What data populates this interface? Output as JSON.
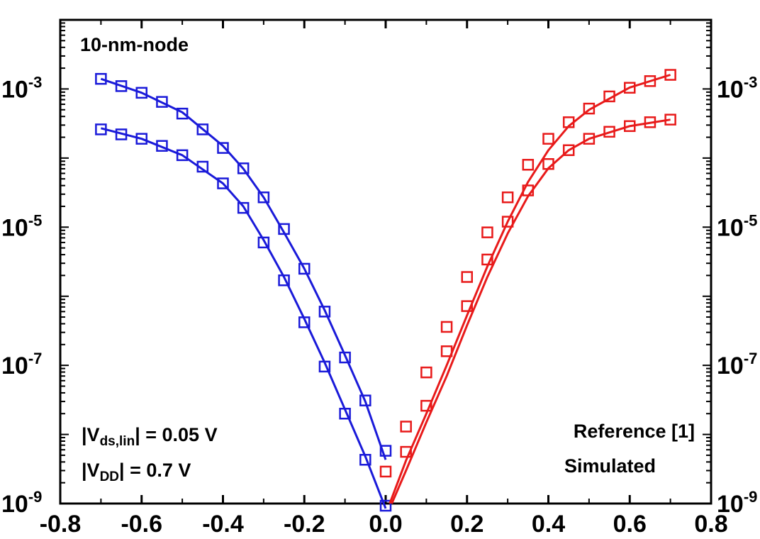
{
  "chart_data": {
    "type": "scatter",
    "title": "",
    "xlabel": "",
    "ylabel": "",
    "xlim": [
      -0.8,
      0.8
    ],
    "ylim_log10": [
      -9,
      -2
    ],
    "y_scale": "log",
    "grid": false,
    "x_ticks": [
      "-0.8",
      "-0.6",
      "-0.4",
      "-0.2",
      "0.0",
      "0.2",
      "0.4",
      "0.6",
      "0.8"
    ],
    "y_ticks": [
      {
        "base": "10",
        "exp": "-3"
      },
      {
        "base": "10",
        "exp": "-5"
      },
      {
        "base": "10",
        "exp": "-7"
      },
      {
        "base": "10",
        "exp": "-9"
      }
    ],
    "y_ticks_right": [
      {
        "base": "10",
        "exp": "-3"
      },
      {
        "base": "10",
        "exp": "-5"
      },
      {
        "base": "10",
        "exp": "-7"
      },
      {
        "base": "10",
        "exp": "-9"
      }
    ],
    "annotations": {
      "node": "10-nm-node",
      "vds_lin": {
        "prefix": "|V",
        "sub": "ds,lin",
        "suffix": "| = 0.05 V"
      },
      "vdd": {
        "prefix": "|V",
        "sub": "DD",
        "suffix": "| = 0.7 V"
      }
    },
    "legend": {
      "position": "bottom-right",
      "entries": [
        "Reference [1]",
        "Simulated"
      ]
    },
    "colors": {
      "pmos": "#1a1ad9",
      "nmos": "#e81a1a"
    },
    "series": [
      {
        "color_key": "pmos",
        "marker": "square",
        "x": [
          -0.7,
          -0.65,
          -0.6,
          -0.55,
          -0.5,
          -0.45,
          -0.4,
          -0.35,
          -0.3,
          -0.25,
          -0.2,
          -0.15,
          -0.1,
          -0.05,
          0.0
        ],
        "y": [
          0.0014,
          0.0011,
          0.00088,
          0.00065,
          0.00044,
          0.00026,
          0.00014,
          7.1e-05,
          2.7e-05,
          9.4e-06,
          2.5e-06,
          6e-07,
          1.3e-07,
          3.1e-08,
          5.8e-09
        ]
      },
      {
        "color_key": "pmos",
        "marker": "square",
        "x": [
          -0.7,
          -0.65,
          -0.6,
          -0.55,
          -0.5,
          -0.45,
          -0.4,
          -0.35,
          -0.3,
          -0.25,
          -0.2,
          -0.15,
          -0.1,
          -0.05,
          0.0
        ],
        "y": [
          0.00026,
          0.00022,
          0.00019,
          0.00015,
          0.00011,
          7.5e-05,
          4.3e-05,
          1.9e-05,
          6e-06,
          1.7e-06,
          4.2e-07,
          9.6e-08,
          2e-08,
          4.3e-09,
          9.3e-10
        ]
      },
      {
        "color_key": "pmos",
        "marker": "line",
        "x": [
          -0.7,
          -0.6,
          -0.5,
          -0.4,
          -0.35,
          -0.3,
          -0.25,
          -0.2,
          -0.15,
          -0.1,
          -0.05,
          0.0
        ],
        "y": [
          0.0014,
          0.00088,
          0.00046,
          0.00015,
          7e-05,
          2.7e-05,
          8.4e-06,
          2.5e-06,
          6.3e-07,
          1.4e-07,
          3e-08,
          4.3e-09
        ]
      },
      {
        "color_key": "pmos",
        "marker": "line",
        "x": [
          -0.7,
          -0.6,
          -0.5,
          -0.4,
          -0.35,
          -0.3,
          -0.25,
          -0.2,
          -0.15,
          -0.1,
          -0.05,
          0.0
        ],
        "y": [
          0.00027,
          0.00019,
          0.00011,
          4.3e-05,
          2e-05,
          6.5e-06,
          1.9e-06,
          4.7e-07,
          1.1e-07,
          2.3e-08,
          4.8e-09,
          8.5e-10
        ]
      },
      {
        "color_key": "nmos",
        "marker": "square",
        "x": [
          0.0,
          0.05,
          0.1,
          0.15,
          0.2,
          0.25,
          0.3,
          0.35,
          0.4,
          0.45,
          0.5,
          0.55,
          0.6,
          0.65,
          0.7
        ],
        "y": [
          2.9e-09,
          1.3e-08,
          7.9e-08,
          3.6e-07,
          1.9e-06,
          8.4e-06,
          2.7e-05,
          8e-05,
          0.00019,
          0.00033,
          0.00052,
          0.00078,
          0.00104,
          0.0013,
          0.0016
        ]
      },
      {
        "color_key": "nmos",
        "marker": "square",
        "x": [
          0.05,
          0.1,
          0.15,
          0.2,
          0.25,
          0.3,
          0.35,
          0.4,
          0.45,
          0.5,
          0.55,
          0.6,
          0.65,
          0.7
        ],
        "y": [
          5.6e-09,
          2.6e-08,
          1.6e-07,
          7.2e-07,
          3.4e-06,
          1.2e-05,
          3.4e-05,
          8.2e-05,
          0.00013,
          0.00019,
          0.00024,
          0.00029,
          0.00033,
          0.00036
        ]
      },
      {
        "color_key": "nmos",
        "marker": "line",
        "x": [
          0.01,
          0.05,
          0.1,
          0.15,
          0.2,
          0.25,
          0.3,
          0.35,
          0.4,
          0.45,
          0.5,
          0.6,
          0.7
        ],
        "y": [
          1e-09,
          4.2e-09,
          2e-08,
          1e-07,
          5.3e-07,
          2.7e-06,
          1.2e-05,
          4.5e-05,
          0.00013,
          0.00029,
          0.0005,
          0.00105,
          0.0016
        ]
      },
      {
        "color_key": "nmos",
        "marker": "line",
        "x": [
          0.015,
          0.05,
          0.1,
          0.15,
          0.2,
          0.25,
          0.3,
          0.35,
          0.4,
          0.45,
          0.5,
          0.6,
          0.7
        ],
        "y": [
          1e-09,
          3e-09,
          1.5e-08,
          7e-08,
          3.8e-07,
          1.9e-06,
          8.1e-06,
          2.8e-05,
          7.1e-05,
          0.00013,
          0.00019,
          0.00029,
          0.00036
        ]
      }
    ]
  }
}
